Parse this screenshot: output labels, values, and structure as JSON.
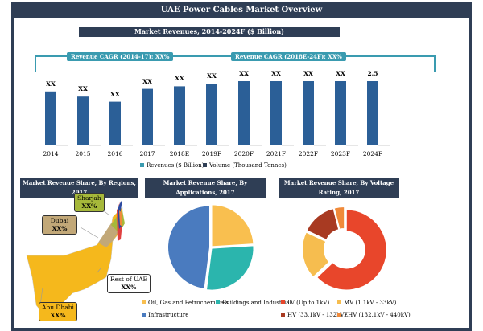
{
  "title": "UAE Power Cables Market Overview",
  "revenue_chart": {
    "title": "Market Revenues, 2014-2024F ($ Billion)",
    "cagr1": "Revenue CAGR (2014-17): XX%",
    "cagr2": "Revenue CAGR (2018E-24F): XX%",
    "legend": [
      "Revenues ($ Billion)",
      "Volume (Thousand Tonnes)"
    ]
  },
  "regions": {
    "title": "Market Revenue Share, By Regions, 2017",
    "labels": [
      {
        "name": "Sharjah",
        "value": "XX%",
        "color": "#a6b83a"
      },
      {
        "name": "Dubai",
        "value": "XX%",
        "color": "#c2a878"
      },
      {
        "name": "Rest of UAE",
        "value": "XX%",
        "color": "#ffffff"
      },
      {
        "name": "Abu Dhabi",
        "value": "XX%",
        "color": "#f5b81c"
      }
    ]
  },
  "chart_data": [
    {
      "type": "bar",
      "categories": [
        "2014",
        "2015",
        "2016",
        "2017",
        "2018E",
        "2019F",
        "2020F",
        "2021F",
        "2022F",
        "2023F",
        "2024F"
      ],
      "series": [
        {
          "name": "Revenues ($ Billion)",
          "values": [
            2.1,
            1.9,
            1.7,
            2.2,
            2.3,
            2.4,
            2.5,
            2.5,
            2.5,
            2.5,
            2.5
          ],
          "data_labels": [
            "XX",
            "XX",
            "XX",
            "XX",
            "XX",
            "XX",
            "XX",
            "XX",
            "XX",
            "XX",
            "2.5"
          ],
          "color": "#2b5f97"
        }
      ],
      "grid": false,
      "legend": "bottom"
    },
    {
      "type": "pie",
      "title": "Market Revenue Share, By Applications, 2017",
      "categories": [
        "Oil, Gas and Petrochemicals",
        "Buildings and Industrial",
        "Infrastructure"
      ],
      "values": [
        24,
        28,
        48
      ],
      "colors": [
        "#f9bf4f",
        "#2bb5ad",
        "#4a7bbf"
      ],
      "legend": "bottom"
    },
    {
      "type": "pie",
      "donut": true,
      "title": "Market Revenue Share, By Voltage Rating, 2017",
      "categories": [
        "LV (Up to 1kV)",
        "MV (1.1kV - 33kV)",
        "HV (33.1kV - 132kV)",
        "EHV (132.1kV - 440kV)"
      ],
      "values": [
        63,
        19,
        14,
        4
      ],
      "colors": [
        "#e8462b",
        "#f6bd4f",
        "#a83a22",
        "#f08a3a"
      ],
      "legend": "bottom"
    }
  ]
}
